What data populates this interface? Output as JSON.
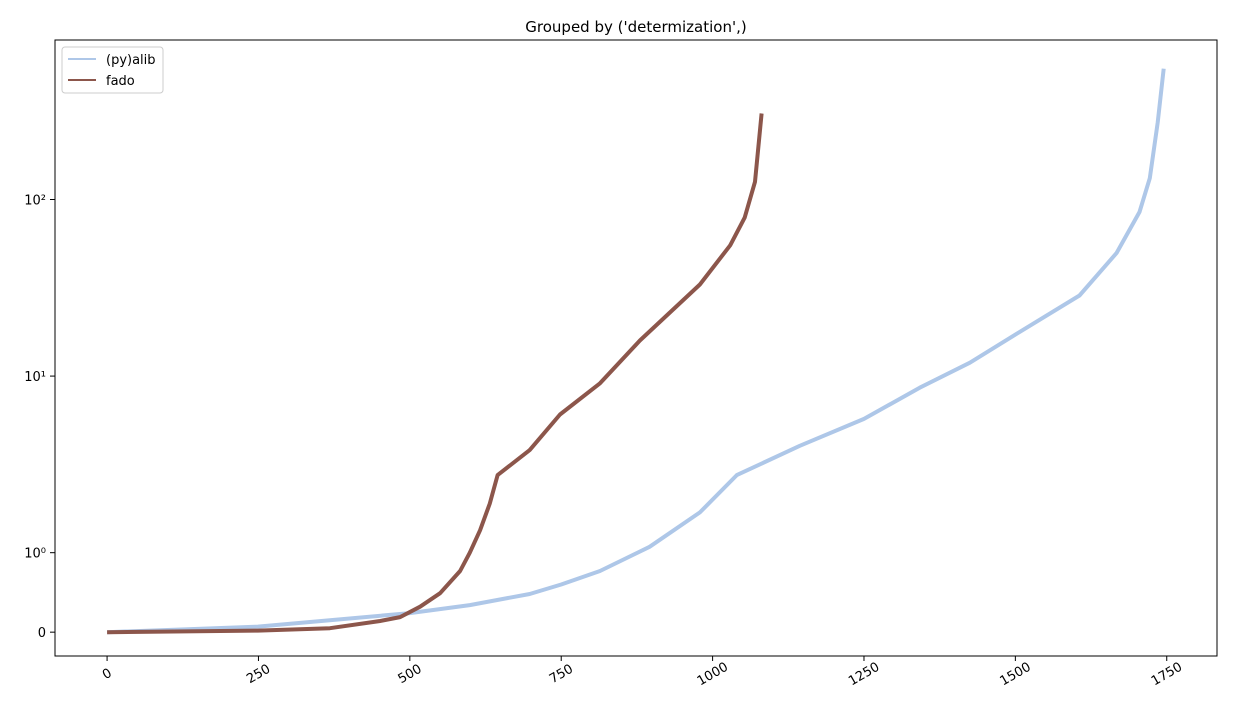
{
  "chart_data": {
    "type": "line",
    "title": "Grouped by ('determization',)",
    "yscale": "symlog",
    "linthresh": 1,
    "linscale": 0.45,
    "xlim": [
      -86,
      1833
    ],
    "xticks": [
      0,
      250,
      500,
      750,
      1000,
      1250,
      1500,
      1750
    ],
    "ylim": [
      -0.3,
      800
    ],
    "yticks": [
      0,
      {
        "value": 1,
        "label": "10⁰"
      },
      {
        "value": 10,
        "label": "10¹"
      },
      {
        "value": 100,
        "label": "10²"
      }
    ],
    "legend": "upper left",
    "grid": false,
    "series": [
      {
        "name": "(py)alib",
        "color": "#aec7e8",
        "x": [
          0,
          249,
          500,
          599,
          698,
          750,
          814,
          896,
          979,
          1040,
          1144,
          1250,
          1342,
          1425,
          1499,
          1606,
          1667,
          1705,
          1722,
          1735,
          1745
        ],
        "values": [
          0,
          0.07,
          0.24,
          0.34,
          0.48,
          0.6,
          0.77,
          1.08,
          1.69,
          2.75,
          4.03,
          5.72,
          8.6,
          11.9,
          17.1,
          28.6,
          49.7,
          85,
          132,
          273,
          550
        ]
      },
      {
        "name": "fado",
        "color": "#8c564b",
        "x": [
          0,
          249,
          368,
          451,
          484,
          517,
          550,
          583,
          599,
          616,
          632,
          645,
          698,
          748,
          814,
          880,
          979,
          1029,
          1053,
          1070,
          1081
        ],
        "values": [
          0,
          0.02,
          0.05,
          0.14,
          0.19,
          0.32,
          0.49,
          0.77,
          1.0,
          1.34,
          1.9,
          2.75,
          3.81,
          6.06,
          9.1,
          15.9,
          33,
          55,
          79,
          126,
          307
        ]
      }
    ]
  }
}
